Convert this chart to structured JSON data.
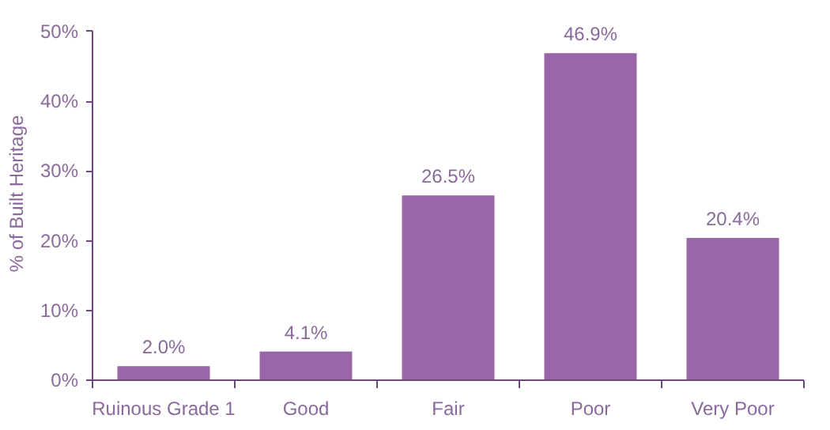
{
  "chart_data": {
    "type": "bar",
    "ylabel": "% of Built Heritage",
    "categories": [
      "Ruinous Grade 1",
      "Good",
      "Fair",
      "Poor",
      "Very Poor"
    ],
    "values": [
      2.0,
      4.1,
      26.5,
      46.9,
      20.4
    ],
    "value_labels": [
      "2.0%",
      "4.1%",
      "26.5%",
      "46.9%",
      "20.4%"
    ],
    "color": "#9966a8",
    "ylim": [
      0,
      50
    ],
    "yticks": [
      {
        "value": 0,
        "label": "0%"
      },
      {
        "value": 10,
        "label": "10%"
      },
      {
        "value": 20,
        "label": "20%"
      },
      {
        "value": 30,
        "label": "30%"
      },
      {
        "value": 40,
        "label": "40%"
      },
      {
        "value": 50,
        "label": "50%"
      }
    ],
    "grid": false
  }
}
